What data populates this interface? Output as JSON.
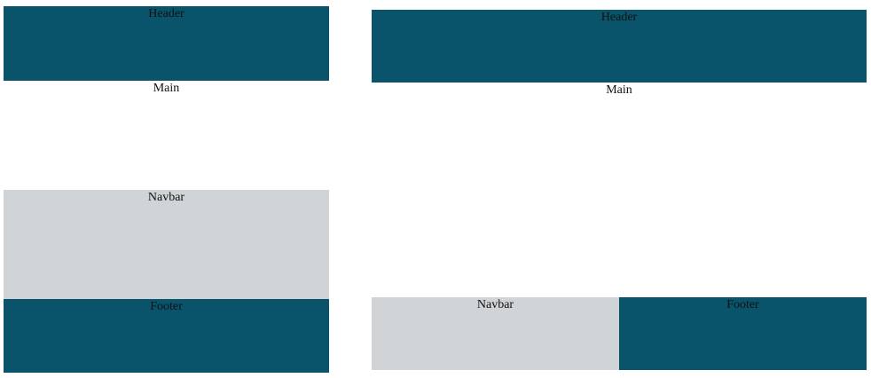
{
  "layouts": [
    {
      "header_label": "Header",
      "main_label": "Main",
      "navbar_label": "Navbar",
      "footer_label": "Footer"
    },
    {
      "header_label": "Header",
      "main_label": "Main",
      "navbar_label": "Navbar",
      "footer_label": "Footer"
    }
  ],
  "colors": {
    "header": "#09536b",
    "footer": "#09536b",
    "navbar": "#d0d4d6",
    "main": "#ffffff"
  }
}
